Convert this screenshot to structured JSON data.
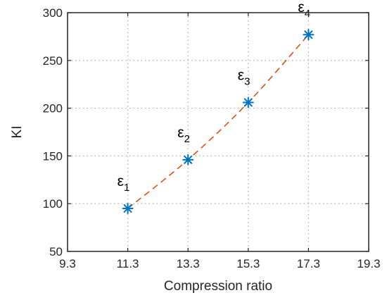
{
  "chart_data": {
    "type": "line",
    "xlabel": "Compression ratio",
    "ylabel": "KI",
    "xlim": [
      9.3,
      19.3
    ],
    "ylim": [
      50,
      300
    ],
    "xticks": [
      9.3,
      11.3,
      13.3,
      15.3,
      17.3,
      19.3
    ],
    "xtick_labels": [
      "9.3",
      "11.3",
      "13.3",
      "15.3",
      "17.3",
      "19.3"
    ],
    "yticks": [
      50,
      100,
      150,
      200,
      250,
      300
    ],
    "ytick_labels": [
      "50",
      "100",
      "150",
      "200",
      "250",
      "300"
    ],
    "grid": true,
    "series": [
      {
        "marker": "asterisk",
        "line_style": "none",
        "color": "#0072BD",
        "x": [
          11.3,
          13.3,
          15.3,
          17.3
        ],
        "y": [
          95,
          146,
          206,
          277
        ]
      },
      {
        "marker": "none",
        "line_style": "dashed",
        "color": "#D95319",
        "x": [
          11.3,
          13.3,
          15.3,
          17.3
        ],
        "y": [
          95,
          146,
          206,
          277
        ]
      }
    ],
    "annotations": [
      {
        "base": "ε",
        "sub": "1",
        "x": 11.3,
        "y": 95
      },
      {
        "base": "ε",
        "sub": "2",
        "x": 13.3,
        "y": 146
      },
      {
        "base": "ε",
        "sub": "3",
        "x": 15.3,
        "y": 206
      },
      {
        "base": "ε",
        "sub": "4",
        "x": 17.3,
        "y": 277
      }
    ]
  }
}
